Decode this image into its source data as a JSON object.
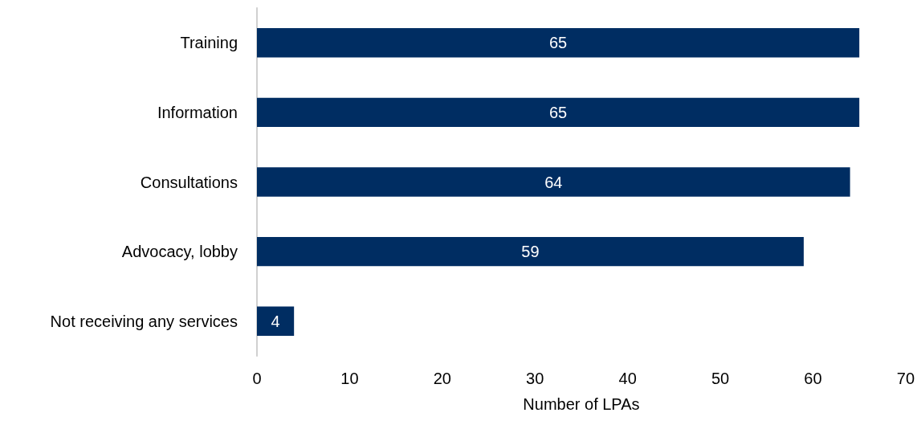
{
  "chart_data": {
    "type": "bar",
    "orientation": "horizontal",
    "xlabel": "Number of LPAs",
    "categories": [
      "Training",
      "Information",
      "Consultations",
      "Advocacy, lobby",
      "Not receiving any services"
    ],
    "values": [
      65,
      65,
      64,
      59,
      4
    ],
    "color": "#002d62",
    "xlim": [
      0,
      70
    ],
    "xticks": [
      0,
      10,
      20,
      30,
      40,
      50,
      60,
      70
    ],
    "grid": false,
    "data_labels": true
  }
}
